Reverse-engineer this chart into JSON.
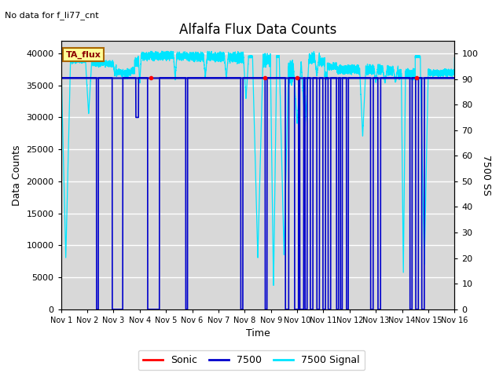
{
  "title": "Alfalfa Flux Data Counts",
  "subtitle": "No data for f_li77_cnt",
  "xlabel": "Time",
  "ylabel_left": "Data Counts",
  "ylabel_right": "7500 SS",
  "xlim": [
    0,
    15
  ],
  "ylim_left": [
    0,
    42000
  ],
  "ylim_right": [
    0,
    105
  ],
  "yticks_left": [
    0,
    5000,
    10000,
    15000,
    20000,
    25000,
    30000,
    35000,
    40000
  ],
  "yticks_right": [
    0,
    10,
    20,
    30,
    40,
    50,
    60,
    70,
    80,
    90,
    100
  ],
  "xtick_labels": [
    "Nov 1",
    "Nov 2",
    "Nov 3",
    "Nov 4",
    "Nov 5",
    "Nov 6",
    "Nov 7",
    "Nov 8",
    "Nov 9",
    "Nov 10",
    "Nov 11",
    "Nov 12",
    "Nov 13",
    "Nov 14",
    "Nov 15",
    "Nov 16"
  ],
  "hline_value": 36200,
  "hline_color": "#2222bb",
  "sonic_color": "#ff0000",
  "line7500_color": "#0000cc",
  "signal_color": "#00e5ff",
  "bg_color": "#d8d8d8",
  "legend_box_facecolor": "#ffff99",
  "legend_box_edgecolor": "#aa6600",
  "legend_box_text": "TA_flux",
  "figsize": [
    6.4,
    4.8
  ],
  "dpi": 100
}
